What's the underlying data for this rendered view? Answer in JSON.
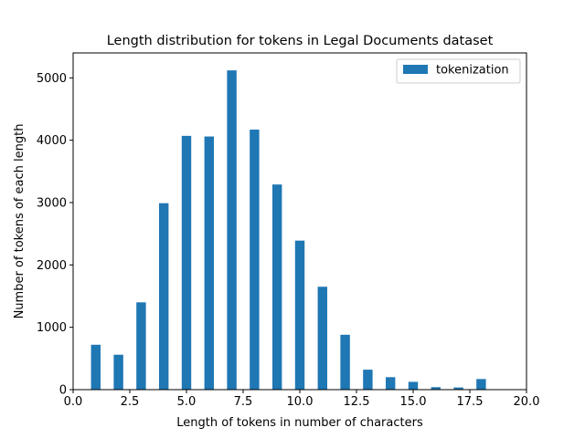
{
  "chart_data": {
    "type": "bar",
    "title": "Length distribution for tokens in Legal Documents dataset",
    "xlabel": "Length of tokens in number of characters",
    "ylabel": "Number of tokens of each length",
    "xlim": [
      0,
      20
    ],
    "ylim": [
      0,
      5400
    ],
    "x_ticks": [
      0,
      2.5,
      5,
      7.5,
      10,
      12.5,
      15,
      17.5,
      20
    ],
    "x_tick_labels": [
      "0.0",
      "2.5",
      "5.0",
      "7.5",
      "10.0",
      "12.5",
      "15.0",
      "17.5",
      "20.0"
    ],
    "y_ticks": [
      0,
      1000,
      2000,
      3000,
      4000,
      5000
    ],
    "y_tick_labels": [
      "0",
      "1000",
      "2000",
      "3000",
      "4000",
      "5000"
    ],
    "grid": false,
    "legend_position": "top-right",
    "series": [
      {
        "name": "tokenization",
        "color": "#1f77b4",
        "x": [
          1,
          2,
          3,
          4,
          5,
          6,
          7,
          8,
          9,
          10,
          11,
          12,
          13,
          14,
          15,
          16,
          17,
          18
        ],
        "values": [
          720,
          560,
          1400,
          2990,
          4070,
          4060,
          5120,
          4170,
          3290,
          2390,
          1650,
          880,
          320,
          200,
          125,
          40,
          35,
          170
        ]
      }
    ]
  }
}
